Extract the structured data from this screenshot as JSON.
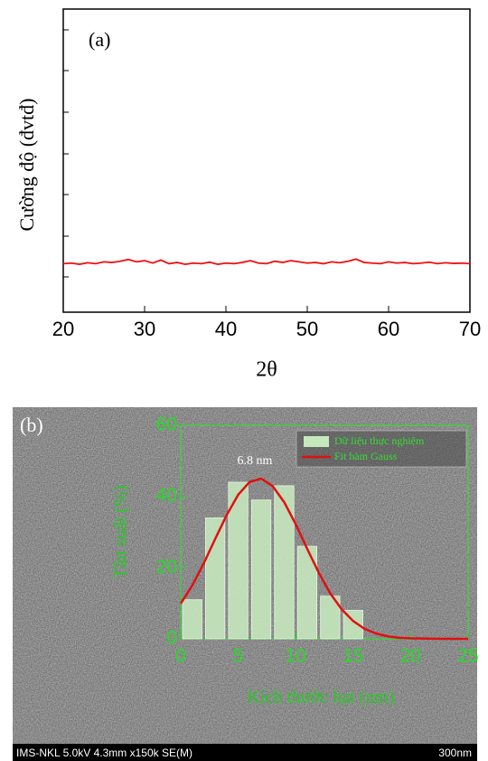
{
  "chart_data": [
    {
      "type": "line",
      "panel_label": "(a)",
      "x_label": "2θ",
      "y_label": "Cường độ (đvtđ)",
      "xlim": [
        20,
        70
      ],
      "xticks": [
        20,
        30,
        40,
        50,
        60,
        70
      ],
      "ylim": [
        0,
        10
      ],
      "color": "#ee1111",
      "x": [
        20,
        21,
        22,
        23,
        24,
        25,
        26,
        27,
        28,
        29,
        30,
        31,
        32,
        33,
        34,
        35,
        36,
        37,
        38,
        39,
        40,
        41,
        42,
        43,
        44,
        45,
        46,
        47,
        48,
        49,
        50,
        51,
        52,
        53,
        54,
        55,
        56,
        57,
        58,
        59,
        60,
        61,
        62,
        63,
        64,
        65,
        66,
        67,
        68,
        69,
        70
      ],
      "values": [
        1.6,
        1.62,
        1.58,
        1.63,
        1.6,
        1.66,
        1.64,
        1.68,
        1.74,
        1.66,
        1.7,
        1.62,
        1.72,
        1.6,
        1.64,
        1.58,
        1.62,
        1.6,
        1.65,
        1.58,
        1.62,
        1.6,
        1.64,
        1.7,
        1.62,
        1.6,
        1.68,
        1.64,
        1.7,
        1.66,
        1.62,
        1.64,
        1.6,
        1.66,
        1.63,
        1.68,
        1.75,
        1.64,
        1.62,
        1.6,
        1.66,
        1.62,
        1.64,
        1.6,
        1.62,
        1.65,
        1.6,
        1.63,
        1.61,
        1.62,
        1.6
      ]
    },
    {
      "type": "histogram",
      "panel_label": "(b)",
      "x_label": "Kích thước hạt (nm)",
      "y_label": "Tần suất (%)",
      "annotation": "6.8 nm",
      "xlim": [
        0,
        25
      ],
      "xticks": [
        0,
        5,
        10,
        15,
        20,
        25
      ],
      "ylim": [
        0,
        60
      ],
      "yticks": [
        0,
        20,
        40,
        60
      ],
      "bins": [
        0,
        2,
        4,
        6,
        8,
        10,
        12,
        14,
        16
      ],
      "series": [
        {
          "name": "Dữ liệu thực nghiệm",
          "color": "#c6e8bd",
          "values": [
            11,
            34,
            44,
            39,
            43,
            26,
            12,
            8
          ]
        },
        {
          "name": "Fit hàm Gauss",
          "type": "line",
          "color": "#e01010",
          "x": [
            0,
            1,
            2,
            3,
            4,
            5,
            6,
            7,
            8,
            9,
            10,
            11,
            12,
            13,
            14,
            15,
            16,
            17,
            18,
            19,
            20,
            22,
            25
          ],
          "values": [
            9.9,
            15.0,
            21.2,
            28.1,
            34.8,
            40.5,
            44.1,
            45.0,
            42.9,
            38.4,
            32.2,
            25.3,
            18.6,
            12.8,
            8.3,
            5.0,
            2.8,
            1.5,
            0.7,
            0.3,
            0.15,
            0.02,
            0
          ]
        }
      ]
    }
  ],
  "sem_image": {
    "info": "IMS-NKL 5.0kV 4.3mm x150k SE(M)",
    "scale_bar": "300nm"
  }
}
